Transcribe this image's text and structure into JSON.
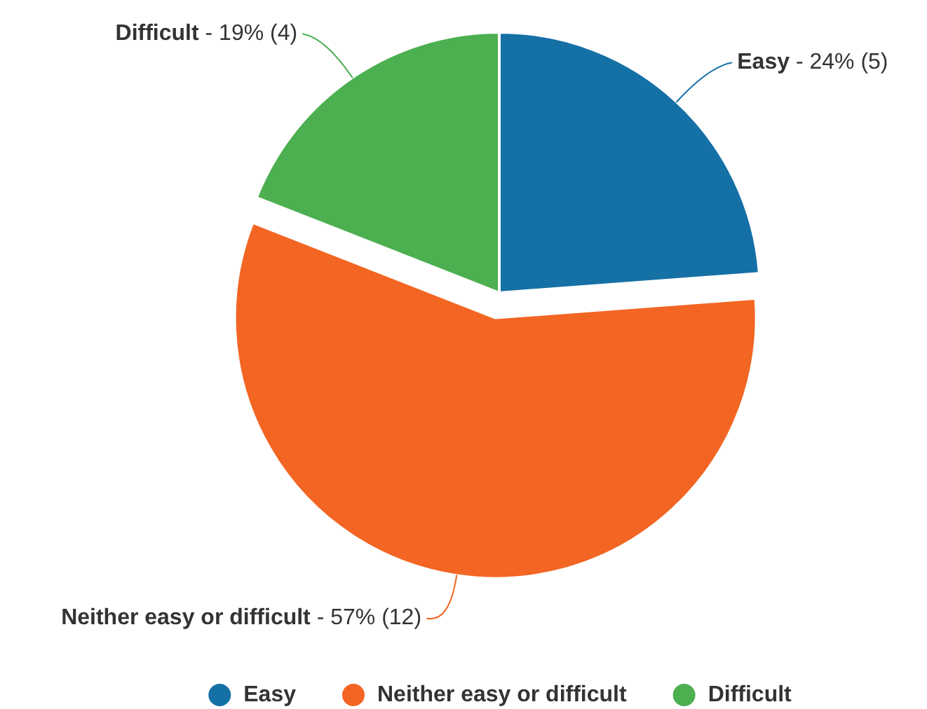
{
  "chart_data": {
    "type": "pie",
    "categories": [
      "Easy",
      "Neither easy or difficult",
      "Difficult"
    ],
    "values": [
      5,
      12,
      4
    ],
    "colors": [
      "#1570a6",
      "#f26522",
      "#4caf50"
    ],
    "value_labels": [
      "- 24% (5)",
      "- 57% (12)",
      "- 19% (4)"
    ],
    "legend": "bottom"
  }
}
